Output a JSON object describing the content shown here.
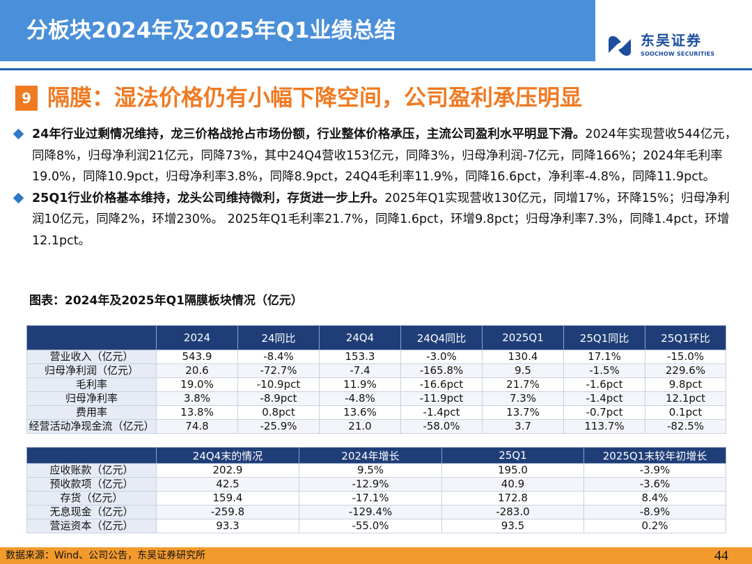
{
  "header": {
    "title": "分板块2024年及2025年Q1业绩总结",
    "logo_cn": "东吴证券",
    "logo_en": "SOOCHOW SECURITIES",
    "brand_color": "#1c4e9c",
    "bar_color": "#4a8fd9"
  },
  "section": {
    "number": "9",
    "title": "隔膜：湿法价格仍有小幅下降空间，公司盈利承压明显",
    "accent_color": "#f07a22"
  },
  "bullets": [
    {
      "lead": "24年行业过剩情况维持，龙三价格战抢占市场份额，行业整体价格承压，主流公司盈利水平明显下滑。",
      "body": "2024年实现营收544亿元，同降8%，归母净利润21亿元，同降73%，其中24Q4营收153亿元，同降3%，归母净利润-7亿元，同降166%；2024年毛利率19.0%，同降10.9pct，归母净利率3.8%，同降8.9pct，24Q4毛利率11.9%，同降16.6pct，净利率-4.8%，同降11.9pct。"
    },
    {
      "lead": "25Q1行业价格基本维持，龙头公司维持微利，存货进一步上升。",
      "body": "2025年Q1实现营收130亿元，同增17%，环降15%；归母净利润10亿元，同降2%，环增230%。 2025年Q1毛利率21.7%，同降1.6pct，环增9.8pct；归母净利率7.3%，同降1.4pct，环增12.1pct。"
    }
  ],
  "figure_caption": "图表：2024年及2025年Q1隔膜板块情况（亿元）",
  "table1": {
    "headers": [
      "",
      "2024",
      "24同比",
      "24Q4",
      "24Q4同比",
      "2025Q1",
      "25Q1同比",
      "25Q1环比"
    ],
    "rows": [
      [
        "营业收入（亿元）",
        "543.9",
        "-8.4%",
        "153.3",
        "-3.0%",
        "130.4",
        "17.1%",
        "-15.0%"
      ],
      [
        "归母净利润（亿元）",
        "20.6",
        "-72.7%",
        "-7.4",
        "-165.8%",
        "9.5",
        "-1.5%",
        "229.6%"
      ],
      [
        "毛利率",
        "19.0%",
        "-10.9pct",
        "11.9%",
        "-16.6pct",
        "21.7%",
        "-1.6pct",
        "9.8pct"
      ],
      [
        "归母净利率",
        "3.8%",
        "-8.9pct",
        "-4.8%",
        "-11.9pct",
        "7.3%",
        "-1.4pct",
        "12.1pct"
      ],
      [
        "费用率",
        "13.8%",
        "0.8pct",
        "13.6%",
        "-1.4pct",
        "13.7%",
        "-0.7pct",
        "0.1pct"
      ],
      [
        "经营活动净现金流（亿元）",
        "74.8",
        "-25.9%",
        "21.0",
        "-58.0%",
        "3.7",
        "113.7%",
        "-82.5%"
      ]
    ]
  },
  "table2": {
    "headers": [
      "",
      "24Q4末的情况",
      "2024年增长",
      "25Q1",
      "2025Q1末较年初增长"
    ],
    "rows": [
      [
        "应收账款（亿元）",
        "202.9",
        "9.5%",
        "195.0",
        "-3.9%"
      ],
      [
        "预收款项（亿元）",
        "42.5",
        "-12.9%",
        "40.9",
        "-3.6%"
      ],
      [
        "存货（亿元）",
        "159.4",
        "-17.1%",
        "172.8",
        "8.4%"
      ],
      [
        "无息现金（亿元）",
        "-259.8",
        "-129.4%",
        "-283.0",
        "-8.9%"
      ],
      [
        "营运资本（亿元）",
        "93.3",
        "-55.0%",
        "93.5",
        "0.2%"
      ]
    ]
  },
  "footer": {
    "source": "数据来源：Wind、公司公告，东吴证券研究所",
    "page_number": "44"
  }
}
